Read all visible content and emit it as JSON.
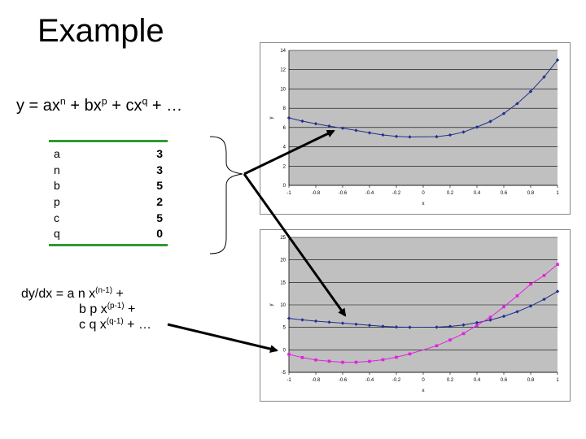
{
  "slide": {
    "title": "Example",
    "equation": {
      "lead": "y = ax",
      "exp1": "n",
      "mid1": " + bx",
      "exp2": "p",
      "mid2": " + cx",
      "exp3": "q",
      "tail": " + …"
    },
    "params": [
      {
        "name": "a",
        "value": "3"
      },
      {
        "name": "n",
        "value": "3"
      },
      {
        "name": "b",
        "value": "5"
      },
      {
        "name": "p",
        "value": "2"
      },
      {
        "name": "c",
        "value": "5"
      },
      {
        "name": "q",
        "value": "0"
      }
    ],
    "derivative": {
      "line1_pre": "dy/dx = ",
      "line1_text": "a n x",
      "line1_exp": "(n-1)",
      "line1_tail": " +",
      "line2_text": "b p x",
      "line2_exp": "(p-1)",
      "line2_tail": " +",
      "line3_text": "c q x",
      "line3_exp": "(q-1)",
      "line3_tail": " + …"
    }
  },
  "chart_data": [
    {
      "type": "line",
      "xlabel": "x",
      "ylabel": "y",
      "xlim": [
        -1,
        1
      ],
      "ylim": [
        0,
        14
      ],
      "xticks": [
        "-1",
        "-0.8",
        "-0.6",
        "-0.4",
        "-0.2",
        "0",
        "0.2",
        "0.4",
        "0.6",
        "0.8",
        "1"
      ],
      "yticks": [
        "0",
        "2",
        "4",
        "6",
        "8",
        "10",
        "12",
        "14"
      ],
      "grid": true,
      "background": "#c0c0c0",
      "series": [
        {
          "color": "#1f2f8f",
          "x": [
            -1,
            -0.9,
            -0.8,
            -0.7,
            -0.6,
            -0.5,
            -0.4,
            -0.3,
            -0.2,
            -0.1,
            0.1,
            0.2,
            0.3,
            0.4,
            0.5,
            0.6,
            0.7,
            0.8,
            0.9,
            1
          ],
          "y": [
            7,
            6.66,
            6.39,
            6.15,
            5.93,
            5.7,
            5.45,
            5.23,
            5.08,
            5.02,
            5.05,
            5.22,
            5.53,
            6.05,
            6.63,
            7.45,
            8.48,
            9.74,
            11.24,
            13
          ]
        }
      ]
    },
    {
      "type": "line",
      "xlabel": "x",
      "ylabel": "y",
      "xlim": [
        -1,
        1
      ],
      "ylim": [
        -5,
        25
      ],
      "xticks": [
        "-1",
        "-0.8",
        "-0.6",
        "-0.4",
        "-0.2",
        "0",
        "0.2",
        "0.4",
        "0.6",
        "0.8",
        "1"
      ],
      "yticks": [
        "-5",
        "0",
        "5",
        "10",
        "15",
        "20",
        "25"
      ],
      "grid": true,
      "background": "#c0c0c0",
      "series": [
        {
          "color": "#1f2f8f",
          "x": [
            -1,
            -0.9,
            -0.8,
            -0.7,
            -0.6,
            -0.5,
            -0.4,
            -0.3,
            -0.2,
            -0.1,
            0.1,
            0.2,
            0.3,
            0.4,
            0.5,
            0.6,
            0.7,
            0.8,
            0.9,
            1
          ],
          "y": [
            7,
            6.66,
            6.39,
            6.15,
            5.93,
            5.7,
            5.45,
            5.23,
            5.08,
            5.02,
            5.05,
            5.22,
            5.53,
            6.05,
            6.63,
            7.45,
            8.48,
            9.74,
            11.24,
            13
          ]
        },
        {
          "color": "#e020e0",
          "x": [
            -1,
            -0.9,
            -0.8,
            -0.7,
            -0.6,
            -0.5,
            -0.4,
            -0.3,
            -0.2,
            -0.1,
            0.1,
            0.2,
            0.3,
            0.4,
            0.5,
            0.6,
            0.7,
            0.8,
            0.9,
            1
          ],
          "y": [
            -1,
            -1.71,
            -2.24,
            -2.53,
            -2.76,
            -2.75,
            -2.56,
            -2.19,
            -1.64,
            -0.91,
            0.91,
            2.2,
            3.61,
            5.44,
            7.25,
            9.56,
            12.01,
            14.6,
            16.53,
            19
          ]
        }
      ]
    }
  ]
}
